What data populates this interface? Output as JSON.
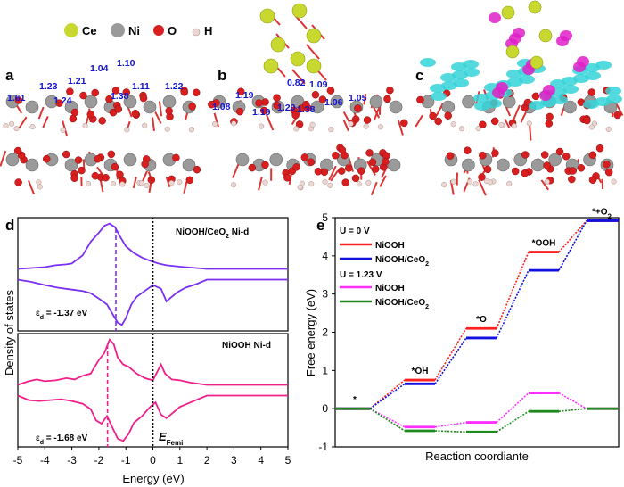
{
  "panels": {
    "a": "a",
    "b": "b",
    "c": "c",
    "d": "d",
    "e": "e"
  },
  "legend_atoms": [
    {
      "symbol": "Ce",
      "color": "#c9d82e"
    },
    {
      "symbol": "Ni",
      "color": "#9a9a9a"
    },
    {
      "symbol": "O",
      "color": "#d81e1e"
    },
    {
      "symbol": "H",
      "color": "#ead6d2"
    }
  ],
  "annotations": {
    "a": [
      "1.61",
      "1.23",
      "1.21",
      "1.04",
      "1.10",
      "1.24",
      "1.38",
      "1.11",
      "1.22"
    ],
    "b": [
      "1.19",
      "0.82",
      "1.09",
      "1.08",
      "1.19",
      "1.20",
      "1.38",
      "1.06",
      "1.05"
    ]
  },
  "colors": {
    "atom_ce": "#c9d82e",
    "atom_ni": "#9a9a9a",
    "atom_o": "#d81e1e",
    "atom_h": "#ead6d2",
    "density_cyan": "#35d3d8",
    "density_magenta": "#e020c8",
    "annotation_blue": "#1414cc",
    "dos_purple": "#7b2ff0",
    "dos_pink": "#f01f8a"
  },
  "chart_data": [
    {
      "type": "line",
      "panel": "d",
      "ylabel": "Density of states",
      "xlabel": "Energy (eV)",
      "xlim": [
        -5,
        5
      ],
      "x_ticks": [
        "-5",
        "-4",
        "-3",
        "-2",
        "-1",
        "0",
        "1",
        "2",
        "3",
        "4",
        "5"
      ],
      "fermi_label": "E",
      "fermi_label_sub": "Femi",
      "subplots": [
        {
          "name": "NiOOH/CeO",
          "name_sub": "2",
          "name_suffix": " Ni-d",
          "color": "#7b2ff0",
          "center_label": "ε",
          "center_sub": "d",
          "center_value": " = -1.37 eV",
          "d_band_center": -1.37,
          "up": [
            [
              -5,
              0.0
            ],
            [
              -4.5,
              0.02
            ],
            [
              -4,
              0.04
            ],
            [
              -3.6,
              0.08
            ],
            [
              -3.2,
              0.1
            ],
            [
              -3,
              0.12
            ],
            [
              -2.6,
              0.3
            ],
            [
              -2.3,
              0.6
            ],
            [
              -2,
              0.8
            ],
            [
              -1.8,
              0.95
            ],
            [
              -1.6,
              1.0
            ],
            [
              -1.4,
              0.92
            ],
            [
              -1.2,
              0.7
            ],
            [
              -1.0,
              0.5
            ],
            [
              -0.7,
              0.35
            ],
            [
              -0.4,
              0.25
            ],
            [
              -0.1,
              0.18
            ],
            [
              0.2,
              0.12
            ],
            [
              0.5,
              0.08
            ],
            [
              1.0,
              0.05
            ],
            [
              2.0,
              0.0
            ],
            [
              3,
              0.0
            ],
            [
              5,
              0.0
            ]
          ],
          "down": [
            [
              -5,
              0.0
            ],
            [
              -4.5,
              -0.05
            ],
            [
              -4,
              -0.12
            ],
            [
              -3.5,
              -0.18
            ],
            [
              -3,
              -0.22
            ],
            [
              -2.6,
              -0.25
            ],
            [
              -2.3,
              -0.3
            ],
            [
              -2,
              -0.42
            ],
            [
              -1.7,
              -0.55
            ],
            [
              -1.5,
              -0.75
            ],
            [
              -1.3,
              -0.95
            ],
            [
              -1.15,
              -1.0
            ],
            [
              -1.0,
              -0.85
            ],
            [
              -0.8,
              -0.55
            ],
            [
              -0.6,
              -0.38
            ],
            [
              -0.3,
              -0.25
            ],
            [
              0,
              -0.12
            ],
            [
              0.3,
              -0.2
            ],
            [
              0.5,
              -0.48
            ],
            [
              0.7,
              -0.38
            ],
            [
              0.9,
              -0.28
            ],
            [
              1.2,
              -0.18
            ],
            [
              1.6,
              -0.1
            ],
            [
              2.0,
              0.0
            ],
            [
              3,
              0.0
            ],
            [
              5,
              0.0
            ]
          ]
        },
        {
          "name": "NiOOH",
          "name_sub": "",
          "name_suffix": " Ni-d",
          "color": "#f01f8a",
          "center_label": "ε",
          "center_sub": "d",
          "center_value": " = -1.68 eV",
          "d_band_center": -1.68,
          "up": [
            [
              -5,
              0.0
            ],
            [
              -4.6,
              0.08
            ],
            [
              -4.3,
              0.12
            ],
            [
              -4,
              0.08
            ],
            [
              -3.6,
              0.1
            ],
            [
              -3.2,
              0.15
            ],
            [
              -2.9,
              0.12
            ],
            [
              -2.6,
              0.2
            ],
            [
              -2.3,
              0.25
            ],
            [
              -2,
              0.55
            ],
            [
              -1.8,
              0.7
            ],
            [
              -1.6,
              1.0
            ],
            [
              -1.45,
              0.9
            ],
            [
              -1.3,
              0.6
            ],
            [
              -1.1,
              0.45
            ],
            [
              -0.9,
              0.4
            ],
            [
              -0.6,
              0.25
            ],
            [
              -0.3,
              0.15
            ],
            [
              0,
              0.1
            ],
            [
              0.3,
              0.45
            ],
            [
              0.45,
              0.25
            ],
            [
              0.7,
              0.12
            ],
            [
              1.0,
              0.1
            ],
            [
              1.4,
              0.05
            ],
            [
              2.0,
              0.0
            ],
            [
              3,
              0.0
            ],
            [
              5,
              0.0
            ]
          ],
          "down": [
            [
              -5,
              0.0
            ],
            [
              -4.6,
              -0.1
            ],
            [
              -4.2,
              -0.12
            ],
            [
              -3.8,
              -0.1
            ],
            [
              -3.4,
              -0.08
            ],
            [
              -3,
              -0.12
            ],
            [
              -2.6,
              -0.18
            ],
            [
              -2.3,
              -0.3
            ],
            [
              -2.1,
              -0.55
            ],
            [
              -1.9,
              -0.62
            ],
            [
              -1.7,
              -0.45
            ],
            [
              -1.5,
              -0.7
            ],
            [
              -1.3,
              -0.95
            ],
            [
              -1.1,
              -1.0
            ],
            [
              -0.9,
              -0.85
            ],
            [
              -0.7,
              -0.6
            ],
            [
              -0.4,
              -0.45
            ],
            [
              -0.1,
              -0.25
            ],
            [
              0.1,
              -0.15
            ],
            [
              0.3,
              -0.42
            ],
            [
              0.5,
              -0.5
            ],
            [
              0.7,
              -0.4
            ],
            [
              1.0,
              -0.25
            ],
            [
              1.4,
              -0.15
            ],
            [
              2.0,
              0.0
            ],
            [
              3,
              0.0
            ],
            [
              5,
              0.0
            ]
          ]
        }
      ]
    },
    {
      "type": "line",
      "panel": "e",
      "ylabel": "Free energy (eV)",
      "xlabel": "Reaction coordiante",
      "ylim": [
        -1,
        5
      ],
      "y_ticks": [
        "-1",
        "0",
        "1",
        "2",
        "3",
        "4",
        "5"
      ],
      "states": [
        "*",
        "*OH",
        "*O",
        "*OOH",
        "*+O"
      ],
      "state_suffix_sub": [
        "",
        "",
        "",
        "",
        "2"
      ],
      "groups": [
        {
          "title": "U = 0 V",
          "series": [
            {
              "name": "NiOOH",
              "name_sub": "",
              "color": "#ff2020",
              "values": [
                0.0,
                0.75,
                2.1,
                4.1,
                4.92
              ]
            },
            {
              "name": "NiOOH/CeO",
              "name_sub": "2",
              "color": "#1010e0",
              "values": [
                0.0,
                0.65,
                1.85,
                3.62,
                4.92
              ]
            }
          ]
        },
        {
          "title": "U = 1.23 V",
          "series": [
            {
              "name": "NiOOH",
              "name_sub": "",
              "color": "#ff30ff",
              "values": [
                0.0,
                -0.48,
                -0.36,
                0.41,
                0.0
              ]
            },
            {
              "name": "NiOOH/CeO",
              "name_sub": "2",
              "color": "#1e8a1e",
              "values": [
                0.0,
                -0.58,
                -0.61,
                -0.07,
                0.0
              ]
            }
          ]
        }
      ]
    }
  ]
}
